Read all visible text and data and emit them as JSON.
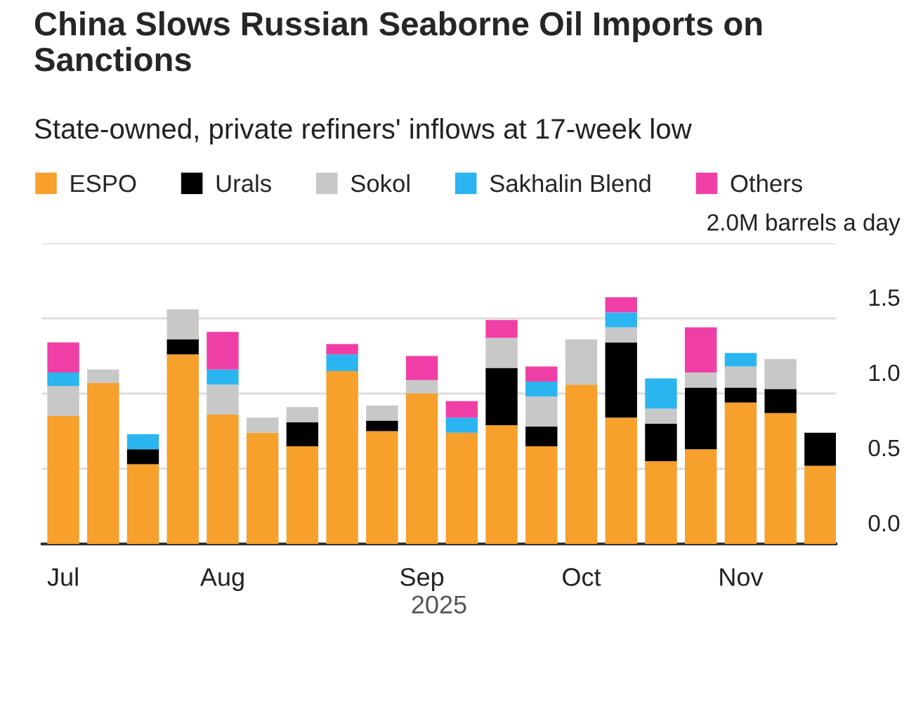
{
  "chart_data": {
    "type": "bar",
    "title": "China Slows Russian Seaborne Oil Imports on Sanctions",
    "subtitle": "State-owned, private refiners' inflows at 17-week low",
    "xlabel": "2025",
    "categories": [
      "Jul",
      null,
      null,
      null,
      "Aug",
      null,
      null,
      null,
      null,
      "Sep",
      null,
      null,
      null,
      "Oct",
      null,
      null,
      null,
      "Nov",
      null,
      null
    ],
    "stacked": true,
    "series": [
      {
        "name": "ESPO",
        "color": "#f7a02b",
        "values": [
          0.85,
          1.07,
          0.53,
          1.26,
          0.86,
          0.74,
          0.65,
          1.15,
          0.75,
          1.0,
          0.74,
          0.79,
          0.65,
          1.06,
          0.84,
          0.55,
          0.63,
          0.94,
          0.87,
          0.52
        ]
      },
      {
        "name": "Urals",
        "color": "#000000",
        "values": [
          0,
          0,
          0.1,
          0.1,
          0,
          0,
          0.16,
          0,
          0.07,
          0,
          0,
          0.38,
          0.13,
          0,
          0.5,
          0.25,
          0.41,
          0.1,
          0.16,
          0.22
        ]
      },
      {
        "name": "Sokol",
        "color": "#c8c8c8",
        "values": [
          0.2,
          0.09,
          0,
          0.2,
          0.2,
          0.1,
          0.1,
          0,
          0.1,
          0.09,
          0,
          0.2,
          0.2,
          0.3,
          0.1,
          0.1,
          0.1,
          0.14,
          0.2,
          0
        ]
      },
      {
        "name": "Sakhalin Blend",
        "color": "#2bb5f0",
        "values": [
          0.09,
          0,
          0.1,
          0,
          0.1,
          0,
          0,
          0.11,
          0,
          0,
          0.1,
          0,
          0.1,
          0,
          0.1,
          0.2,
          0,
          0.09,
          0,
          0
        ]
      },
      {
        "name": "Others",
        "color": "#ef3fa6",
        "values": [
          0.2,
          0,
          0,
          0,
          0.25,
          0,
          0,
          0.07,
          0,
          0.16,
          0.11,
          0.12,
          0.1,
          0,
          0.1,
          0,
          0.3,
          0,
          0,
          0
        ]
      }
    ],
    "ylim": [
      0,
      2.0
    ],
    "yticks": [
      {
        "value": 0,
        "label": "0.0"
      },
      {
        "value": 0.5,
        "label": "0.5"
      },
      {
        "value": 1.0,
        "label": "1.0"
      },
      {
        "value": 1.5,
        "label": "1.5"
      },
      {
        "value": 2.0,
        "label": "2.0M barrels a day"
      }
    ],
    "grid": "y",
    "legend": "top",
    "marker": "square"
  }
}
